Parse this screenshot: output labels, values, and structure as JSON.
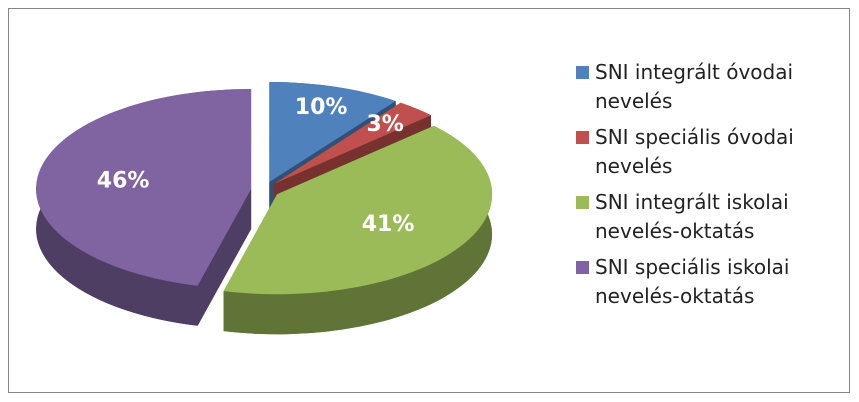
{
  "chart_data": {
    "type": "pie",
    "categories": [
      "SNI integrált óvodai nevelés",
      "SNI speciális óvodai nevelés",
      "SNI integrált iskolai nevelés-oktatás",
      "SNI speciális iskolai nevelés-oktatás"
    ],
    "values": [
      10,
      3,
      41,
      46
    ],
    "value_labels": [
      "10%",
      "3%",
      "41%",
      "46%"
    ],
    "colors": [
      "#4f81bd",
      "#c0504d",
      "#9bbb59",
      "#8064a2"
    ],
    "legend": "right"
  }
}
